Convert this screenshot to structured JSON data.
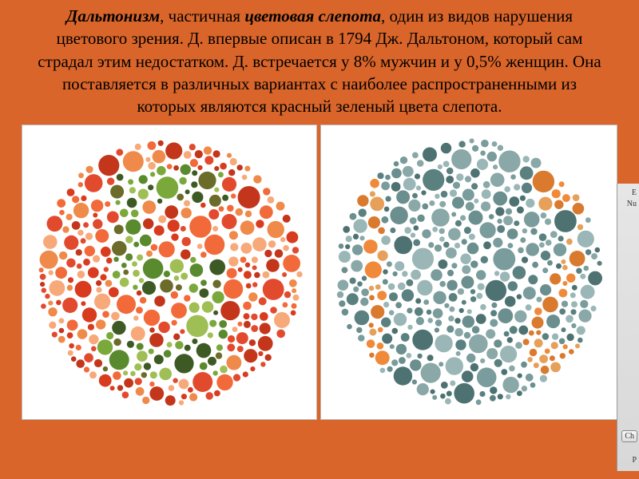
{
  "text": {
    "term1": "Дальтонизм",
    "sep1": ", частичная ",
    "term2": "цветовая слепота",
    "body": ", один из видов нарушения цветового зрения. Д. впервые описан в 1794 Дж. Дальтоном, который сам страдал этим недостатком. Д. встречается у 8% мужчин и у 0,5% женщин. Она поставляется в различных вариантах с наиболее распространенными из которых являются красный зеленый цвета слепота."
  },
  "background_color": "#d9652a",
  "plate1": {
    "type": "ishihara",
    "hidden_number": "5",
    "bg_colors": [
      "#e24a2e",
      "#d93b1f",
      "#f26a3a",
      "#ef8a4a",
      "#c4361b",
      "#f7a97a"
    ],
    "fg_colors": [
      "#5a8a2e",
      "#7aa83a",
      "#3e5a24",
      "#9fbf55",
      "#6b6b2a"
    ],
    "dot_radius_range": [
      3,
      14
    ],
    "plate_radius": 170,
    "frame_bg": "#ffffff"
  },
  "plate2": {
    "type": "ishihara",
    "hidden_number": "12",
    "bg_colors": [
      "#6b8e8e",
      "#5a8080",
      "#7a9c9c",
      "#8aa8a8",
      "#4e7272",
      "#9ab6b6"
    ],
    "fg_colors": [
      "#f08a3a",
      "#e6a05a",
      "#d97a2e"
    ],
    "dot_radius_range": [
      3,
      14
    ],
    "plate_radius": 170,
    "frame_bg": "#ffffff"
  },
  "sidepanel": {
    "label1": "E",
    "label2": "Nu",
    "button": "Ch",
    "label3": "P"
  }
}
